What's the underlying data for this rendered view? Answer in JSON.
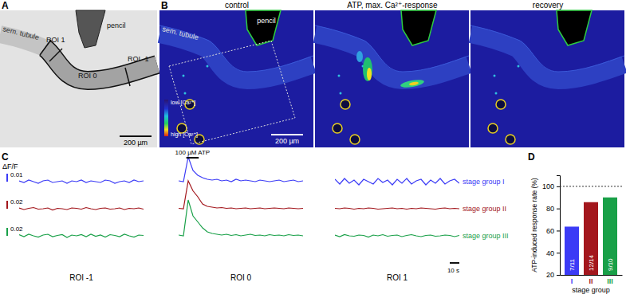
{
  "figure": {
    "panel_labels": [
      "A",
      "B",
      "C",
      "D"
    ],
    "panel_A": {
      "labels": [
        "sem. tubule",
        "ROI 1",
        "ROI 0",
        "ROI -1",
        "pencil"
      ],
      "scale_bar": "200 µm"
    },
    "panel_B": {
      "titles": [
        "control",
        "ATP, max. Ca²⁺-response",
        "recovery"
      ],
      "labels": [
        "sem. tubule",
        "pencil"
      ],
      "colorbar": [
        "low [Ca²⁺]",
        "high [Ca²⁺]"
      ],
      "scale_bar": "200 µm"
    }
  },
  "chart_data": [
    {
      "type": "line",
      "x": [
        0,
        5,
        10,
        15,
        20,
        25,
        30,
        35,
        40,
        45,
        50,
        55,
        60,
        65,
        70,
        75,
        80,
        85,
        90,
        95,
        100,
        105,
        110,
        115,
        120,
        125,
        130
      ],
      "xlim": [
        0,
        130
      ],
      "columns": [
        "ROI -1",
        "ROI 0",
        "ROI 1"
      ],
      "y_label": "ΔF/F",
      "tick_labels": false,
      "stimulus": {
        "label": "100 µM ATP",
        "start": 8,
        "end": 21
      },
      "time_scale_bar": {
        "value": 10,
        "label": "10 s"
      },
      "series": [
        {
          "name": "stage group I",
          "color": "#3b3bf6",
          "ylim": [
            -0.013,
            0.032
          ],
          "scale_bar": 0.01,
          "values": [
            [
              0.001,
              -0.001,
              0.002,
              0,
              -0.002,
              0.001,
              0.002,
              -0.001,
              0,
              0.001,
              -0.002,
              0.001,
              0,
              0.002,
              -0.001,
              0.001,
              0,
              -0.001,
              0.002,
              0.001,
              -0.002,
              0,
              0.001,
              -0.001,
              0.002,
              0,
              0.001
            ],
            [
              0.001,
              0,
              0.031,
              0.014,
              0.008,
              0.005,
              0.003,
              0.002,
              0.003,
              0.001,
              0.002,
              0,
              0.003,
              0.001,
              0.002,
              0.001,
              0,
              0.002,
              0.001,
              0,
              0.001,
              0.002,
              0,
              0.001,
              0.002,
              0,
              0.001
            ],
            [
              0.003,
              -0.003,
              0.004,
              -0.002,
              0.002,
              -0.004,
              0.003,
              0,
              -0.003,
              0.004,
              -0.001,
              0.002,
              -0.004,
              0.003,
              -0.002,
              0.004,
              -0.003,
              0.001,
              0.003,
              -0.004,
              0.002,
              -0.002,
              0.004,
              -0.003,
              0.001,
              0.003,
              -0.002
            ]
          ]
        },
        {
          "name": "stage group II",
          "color": "#a3171d",
          "ylim": [
            -0.04,
            0.08
          ],
          "scale_bar": 0.02,
          "values": [
            [
              0.002,
              -0.002,
              0.001,
              0.003,
              -0.001,
              0,
              0.002,
              -0.003,
              0.001,
              0,
              -0.002,
              0.002,
              0.001,
              -0.001,
              0.003,
              0,
              -0.002,
              0.001,
              0.002,
              -0.001,
              0,
              0.002,
              -0.002,
              0.001,
              0,
              0.002,
              -0.001
            ],
            [
              0.001,
              0,
              0.07,
              0.045,
              0.03,
              0.012,
              0.006,
              0.004,
              0.002,
              0.003,
              0.001,
              0.002,
              0,
              0.001,
              0.002,
              0,
              0.001,
              0.002,
              0,
              0.001,
              0.002,
              0.001,
              0,
              0.002,
              0.001,
              0,
              0.001
            ],
            [
              0.001,
              0,
              0.002,
              0.001,
              -0.001,
              0.001,
              0,
              0.002,
              0.001,
              -0.001,
              0,
              0.001,
              0.002,
              0,
              0.001,
              -0.001,
              0.001,
              0,
              0.002,
              0.001,
              0,
              -0.001,
              0.001,
              0.002,
              0,
              0.001,
              0
            ]
          ]
        },
        {
          "name": "stage group III",
          "color": "#19a048",
          "ylim": [
            -0.026,
            0.1
          ],
          "scale_bar": 0.02,
          "values": [
            [
              0.003,
              -0.002,
              0.004,
              0,
              -0.003,
              0.002,
              0.004,
              -0.002,
              0.001,
              0.003,
              -0.004,
              0.002,
              0,
              0.003,
              -0.002,
              0.004,
              -0.001,
              0.002,
              -0.003,
              0.003,
              0.001,
              -0.002,
              0.004,
              0,
              -0.003,
              0.002,
              0.001
            ],
            [
              0.002,
              0,
              0.09,
              0.05,
              0.035,
              0.02,
              0.01,
              0.006,
              0.004,
              0.002,
              0.004,
              0.001,
              0.003,
              0,
              0.002,
              0.004,
              0.001,
              0.002,
              0,
              0.003,
              0.001,
              0.002,
              0,
              0.003,
              0.001,
              0.002,
              0
            ],
            [
              0.002,
              -0.002,
              0.003,
              0,
              -0.001,
              0.002,
              0.001,
              -0.003,
              0.002,
              0,
              0.003,
              -0.001,
              0.001,
              0.002,
              -0.002,
              0.001,
              0.003,
              0,
              -0.002,
              0.001,
              0.002,
              -0.001,
              0,
              0.002,
              0.001,
              -0.002,
              0.001
            ]
          ]
        }
      ]
    },
    {
      "type": "bar",
      "categories": [
        "I",
        "II",
        "III"
      ],
      "values": [
        63.6,
        85.7,
        90
      ],
      "value_labels": [
        "7/11",
        "12/14",
        "9/10"
      ],
      "data_labels": true,
      "colors": [
        "#3b3bf6",
        "#a3171d",
        "#19a048"
      ],
      "ylim": [
        20,
        110
      ],
      "yticks": [
        20,
        40,
        60,
        80,
        100
      ],
      "y_label": "ATP-induced response rate (%)",
      "x_label": "stage group",
      "reference_line": 100
    }
  ]
}
